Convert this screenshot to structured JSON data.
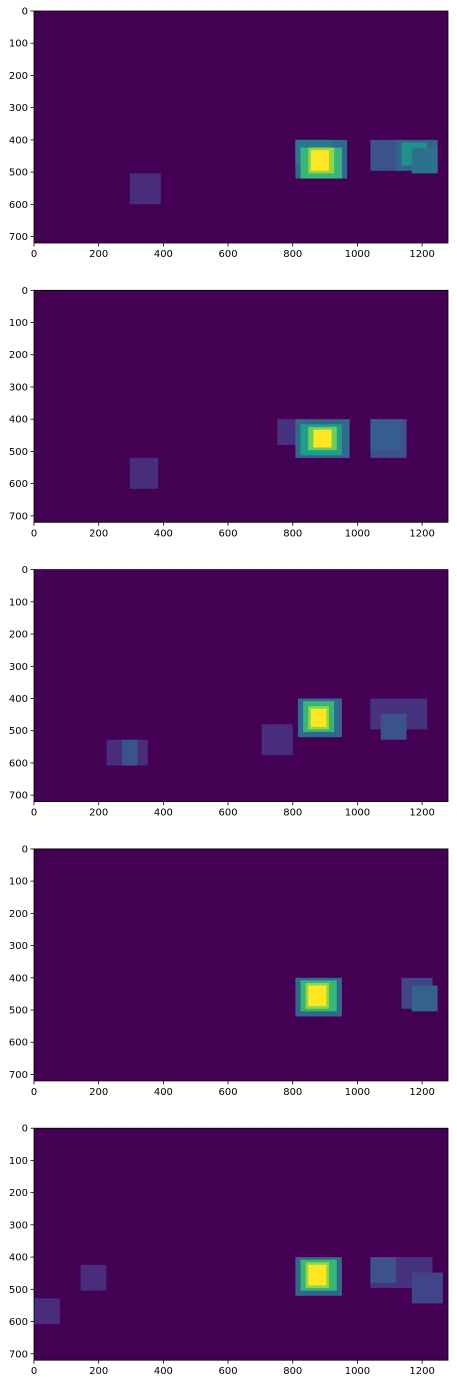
{
  "figure": {
    "background": "#ffffff",
    "colormap": "viridis"
  },
  "chart_data": [
    {
      "type": "heatmap",
      "x_ticks": [
        0,
        200,
        400,
        600,
        800,
        1000,
        1200
      ],
      "y_ticks": [
        0,
        100,
        200,
        300,
        400,
        500,
        600,
        700
      ],
      "xlim": [
        0,
        1280
      ],
      "ylim": [
        720,
        0
      ],
      "background_color": "#440154",
      "boxes": [
        {
          "x": [
            296,
            392
          ],
          "y": [
            504,
            600
          ],
          "color": "#472d7b"
        },
        {
          "x": [
            808,
            968
          ],
          "y": [
            400,
            520
          ],
          "color": "#31688e"
        },
        {
          "x": [
            808,
            920
          ],
          "y": [
            400,
            480
          ],
          "color": "#2a788e"
        },
        {
          "x": [
            824,
            952
          ],
          "y": [
            424,
            520
          ],
          "color": "#35b779"
        },
        {
          "x": [
            848,
            928
          ],
          "y": [
            424,
            504
          ],
          "color": "#90d743"
        },
        {
          "x": [
            856,
            912
          ],
          "y": [
            432,
            496
          ],
          "color": "#fde725"
        },
        {
          "x": [
            1040,
            1136
          ],
          "y": [
            400,
            496
          ],
          "color": "#3b528b"
        },
        {
          "x": [
            1120,
            1248
          ],
          "y": [
            400,
            496
          ],
          "color": "#33638d"
        },
        {
          "x": [
            1136,
            1216
          ],
          "y": [
            408,
            480
          ],
          "color": "#21918c"
        },
        {
          "x": [
            1168,
            1248
          ],
          "y": [
            424,
            504
          ],
          "color": "#2c728e"
        }
      ]
    },
    {
      "type": "heatmap",
      "x_ticks": [
        0,
        200,
        400,
        600,
        800,
        1000,
        1200
      ],
      "y_ticks": [
        0,
        100,
        200,
        300,
        400,
        500,
        600,
        700
      ],
      "xlim": [
        0,
        1280
      ],
      "ylim": [
        720,
        0
      ],
      "background_color": "#440154",
      "boxes": [
        {
          "x": [
            296,
            384
          ],
          "y": [
            520,
            616
          ],
          "color": "#472d7b"
        },
        {
          "x": [
            752,
            848
          ],
          "y": [
            400,
            480
          ],
          "color": "#46327e"
        },
        {
          "x": [
            808,
            976
          ],
          "y": [
            400,
            520
          ],
          "color": "#31688e"
        },
        {
          "x": [
            824,
            952
          ],
          "y": [
            416,
            512
          ],
          "color": "#1f9e89"
        },
        {
          "x": [
            848,
            936
          ],
          "y": [
            424,
            496
          ],
          "color": "#6ece58"
        },
        {
          "x": [
            864,
            920
          ],
          "y": [
            432,
            488
          ],
          "color": "#fde725"
        },
        {
          "x": [
            1040,
            1152
          ],
          "y": [
            400,
            520
          ],
          "color": "#3b528b"
        },
        {
          "x": [
            1040,
            1136
          ],
          "y": [
            400,
            496
          ],
          "color": "#365d8d"
        }
      ]
    },
    {
      "type": "heatmap",
      "x_ticks": [
        0,
        200,
        400,
        600,
        800,
        1000,
        1200
      ],
      "y_ticks": [
        0,
        100,
        200,
        300,
        400,
        500,
        600,
        700
      ],
      "xlim": [
        0,
        1280
      ],
      "ylim": [
        720,
        0
      ],
      "background_color": "#440154",
      "boxes": [
        {
          "x": [
            224,
            352
          ],
          "y": [
            528,
            608
          ],
          "color": "#472d7b"
        },
        {
          "x": [
            272,
            320
          ],
          "y": [
            528,
            608
          ],
          "color": "#3b528b"
        },
        {
          "x": [
            704,
            800
          ],
          "y": [
            480,
            576
          ],
          "color": "#472d7b"
        },
        {
          "x": [
            816,
            952
          ],
          "y": [
            400,
            520
          ],
          "color": "#31688e"
        },
        {
          "x": [
            832,
            928
          ],
          "y": [
            408,
            504
          ],
          "color": "#35b779"
        },
        {
          "x": [
            848,
            912
          ],
          "y": [
            424,
            496
          ],
          "color": "#8fd744"
        },
        {
          "x": [
            856,
            904
          ],
          "y": [
            432,
            488
          ],
          "color": "#fde725"
        },
        {
          "x": [
            1040,
            1216
          ],
          "y": [
            400,
            496
          ],
          "color": "#46327e"
        },
        {
          "x": [
            1072,
            1152
          ],
          "y": [
            448,
            528
          ],
          "color": "#3b528b"
        }
      ]
    },
    {
      "type": "heatmap",
      "x_ticks": [
        0,
        200,
        400,
        600,
        800,
        1000,
        1200
      ],
      "y_ticks": [
        0,
        100,
        200,
        300,
        400,
        500,
        600,
        700
      ],
      "xlim": [
        0,
        1280
      ],
      "ylim": [
        720,
        0
      ],
      "background_color": "#440154",
      "boxes": [
        {
          "x": [
            808,
            952
          ],
          "y": [
            400,
            520
          ],
          "color": "#31688e"
        },
        {
          "x": [
            824,
            936
          ],
          "y": [
            408,
            504
          ],
          "color": "#35b779"
        },
        {
          "x": [
            840,
            912
          ],
          "y": [
            416,
            496
          ],
          "color": "#8fd744"
        },
        {
          "x": [
            848,
            904
          ],
          "y": [
            424,
            488
          ],
          "color": "#fde725"
        },
        {
          "x": [
            1136,
            1232
          ],
          "y": [
            400,
            496
          ],
          "color": "#414487"
        },
        {
          "x": [
            1168,
            1248
          ],
          "y": [
            424,
            504
          ],
          "color": "#33638d"
        }
      ]
    },
    {
      "type": "heatmap",
      "x_ticks": [
        0,
        200,
        400,
        600,
        800,
        1000,
        1200
      ],
      "y_ticks": [
        0,
        100,
        200,
        300,
        400,
        500,
        600,
        700
      ],
      "xlim": [
        0,
        1280
      ],
      "ylim": [
        720,
        0
      ],
      "background_color": "#440154",
      "boxes": [
        {
          "x": [
            0,
            80
          ],
          "y": [
            528,
            608
          ],
          "color": "#472d7b"
        },
        {
          "x": [
            144,
            224
          ],
          "y": [
            424,
            504
          ],
          "color": "#472d7b"
        },
        {
          "x": [
            808,
            952
          ],
          "y": [
            400,
            520
          ],
          "color": "#31688e"
        },
        {
          "x": [
            824,
            936
          ],
          "y": [
            408,
            504
          ],
          "color": "#35b779"
        },
        {
          "x": [
            840,
            912
          ],
          "y": [
            416,
            496
          ],
          "color": "#8fd744"
        },
        {
          "x": [
            848,
            904
          ],
          "y": [
            424,
            488
          ],
          "color": "#fde725"
        },
        {
          "x": [
            1040,
            1136
          ],
          "y": [
            400,
            496
          ],
          "color": "#46327e"
        },
        {
          "x": [
            1040,
            1120
          ],
          "y": [
            400,
            480
          ],
          "color": "#3b528b"
        },
        {
          "x": [
            1136,
            1232
          ],
          "y": [
            400,
            496
          ],
          "color": "#46327e"
        },
        {
          "x": [
            1168,
            1264
          ],
          "y": [
            448,
            544
          ],
          "color": "#414487"
        }
      ]
    }
  ]
}
